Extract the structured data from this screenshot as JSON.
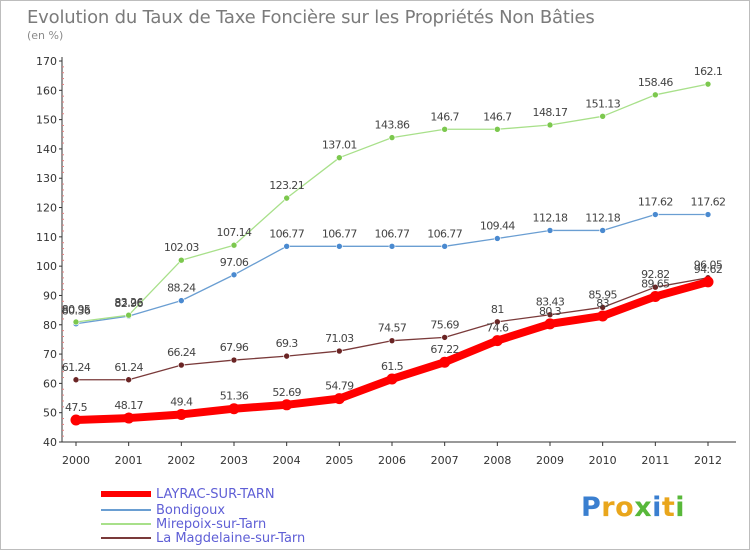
{
  "title": "Evolution du Taux de Taxe Foncière sur les Propriétés Non Bâties",
  "unit_label": "(en %)",
  "logo": {
    "text": "Proxiti",
    "colors": [
      "#3a7fd0",
      "#e9a61c",
      "#e9a61c",
      "#58b83a",
      "#3a7fd0",
      "#e9a61c",
      "#58b83a"
    ]
  },
  "chart_data": {
    "type": "line",
    "x": [
      "2000",
      "2001",
      "2002",
      "2003",
      "2004",
      "2005",
      "2006",
      "2007",
      "2008",
      "2009",
      "2010",
      "2011",
      "2012"
    ],
    "ylim": [
      40,
      170
    ],
    "yticks": [
      40,
      50,
      60,
      70,
      80,
      90,
      100,
      110,
      120,
      130,
      140,
      150,
      160,
      170
    ],
    "grid": false,
    "legend_position": "bottom-left",
    "series": [
      {
        "name": "LAYRAC-SUR-TARN",
        "color": "#ff0000",
        "marker_color": "#ff0000",
        "labels": [
          "47.5",
          "48.17",
          "49.4",
          "51.36",
          "52.69",
          "54.79",
          "61.5",
          "67.22",
          "74.6",
          "80.3",
          "83",
          "89.65",
          "94.62"
        ],
        "values": [
          47.5,
          48.17,
          49.4,
          51.36,
          52.69,
          54.79,
          61.5,
          67.22,
          74.6,
          80.3,
          83,
          89.65,
          94.62
        ]
      },
      {
        "name": "Bondigoux",
        "color": "#6a9ed2",
        "marker_color": "#4a8ad0",
        "labels": [
          "80.36",
          "82.96",
          "88.24",
          "97.06",
          "106.77",
          "106.77",
          "106.77",
          "106.77",
          "109.44",
          "112.18",
          "112.18",
          "117.62",
          "117.62"
        ],
        "values": [
          80.36,
          82.96,
          88.24,
          97.06,
          106.77,
          106.77,
          106.77,
          106.77,
          109.44,
          112.18,
          112.18,
          117.62,
          117.62
        ]
      },
      {
        "name": "Mirepoix-sur-Tarn",
        "color": "#a8e08a",
        "marker_color": "#7cc84e",
        "labels": [
          "80.95",
          "83.26",
          "102.03",
          "107.14",
          "123.21",
          "137.01",
          "143.86",
          "146.7",
          "146.7",
          "148.17",
          "151.13",
          "158.46",
          "162.1"
        ],
        "values": [
          80.95,
          83.26,
          102.03,
          107.14,
          123.21,
          137.01,
          143.86,
          146.7,
          146.7,
          148.17,
          151.13,
          158.46,
          162.1
        ]
      },
      {
        "name": "La Magdelaine-sur-Tarn",
        "color": "#7a3a3a",
        "marker_color": "#6a2424",
        "labels": [
          "61.24",
          "61.24",
          "66.24",
          "67.96",
          "69.3",
          "71.03",
          "74.57",
          "75.69",
          "81",
          "83.43",
          "85.95",
          "92.82",
          "96.05"
        ],
        "values": [
          61.24,
          61.24,
          66.24,
          67.96,
          69.3,
          71.03,
          74.57,
          75.69,
          81,
          83.43,
          85.95,
          92.82,
          96.05
        ]
      }
    ]
  }
}
